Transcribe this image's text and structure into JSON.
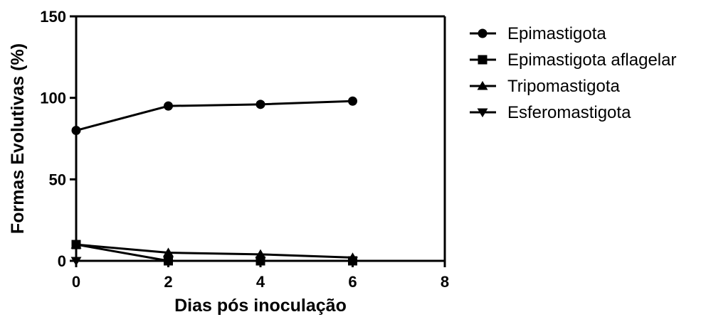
{
  "chart_data": {
    "type": "line",
    "xlabel": "Dias pós inoculação",
    "ylabel": "Formas Evolutivas (%)",
    "xlim": [
      0,
      8
    ],
    "ylim": [
      0,
      150
    ],
    "xticks": [
      "0",
      "2",
      "4",
      "6",
      "8"
    ],
    "yticks": [
      "0",
      "50",
      "100",
      "150"
    ],
    "x": [
      0,
      2,
      4,
      6
    ],
    "legend_position": "right",
    "grid": false,
    "series": [
      {
        "name": "Epimastigota",
        "marker": "circle",
        "values": [
          80,
          95,
          96,
          98
        ]
      },
      {
        "name": "Epimastigota aflagelar",
        "marker": "square",
        "values": [
          10,
          0,
          0,
          0
        ]
      },
      {
        "name": "Tripomastigota",
        "marker": "triangle-up",
        "values": [
          10,
          5,
          4,
          2
        ]
      },
      {
        "name": "Esferomastigota",
        "marker": "triangle-down",
        "values": [
          0,
          0,
          0,
          0
        ]
      }
    ]
  }
}
